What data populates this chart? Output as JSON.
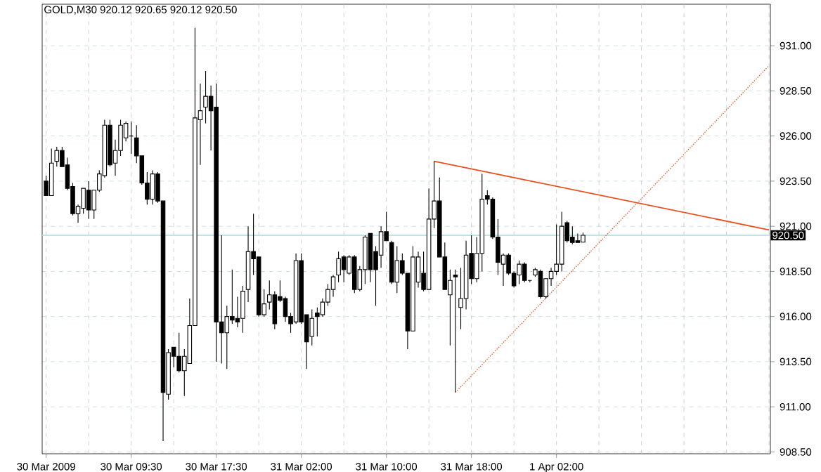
{
  "chart_data": {
    "type": "candlestick",
    "title": "GOLD,M30 920.12 920.65 920.12 920.50",
    "categories": [
      "30 Mar 2009",
      null,
      null,
      null,
      null,
      null,
      null,
      null,
      null,
      null,
      null,
      null,
      null,
      null,
      null,
      null,
      "30 Mar 09:30",
      null,
      null,
      null,
      null,
      null,
      null,
      null,
      null,
      null,
      null,
      null,
      null,
      null,
      null,
      null,
      "30 Mar 17:30",
      null,
      null,
      null,
      null,
      null,
      null,
      null,
      null,
      null,
      null,
      null,
      null,
      null,
      null,
      null,
      "31 Mar 02:00",
      null,
      null,
      null,
      null,
      null,
      null,
      null,
      null,
      null,
      null,
      null,
      null,
      null,
      null,
      null,
      "31 Mar 10:00",
      null,
      null,
      null,
      null,
      null,
      null,
      null,
      null,
      null,
      null,
      null,
      null,
      null,
      null,
      null,
      "31 Mar 18:00",
      null,
      null,
      null,
      null,
      null,
      null,
      null,
      null,
      null,
      null,
      null,
      null,
      null,
      null,
      null,
      "1 Apr 02:00",
      null,
      null,
      null,
      null,
      null,
      null,
      null,
      null,
      null,
      null,
      null,
      null,
      null,
      null,
      null,
      null,
      null,
      null,
      null,
      null,
      null,
      null,
      null,
      null,
      null,
      null,
      null,
      null,
      null,
      null,
      null,
      null,
      null,
      null,
      null,
      null,
      null,
      null,
      null,
      null
    ],
    "ohlc": [
      [
        923.5,
        923.8,
        922.7,
        922.7
      ],
      [
        922.7,
        925.3,
        922.7,
        924.5
      ],
      [
        924.6,
        925.4,
        924.3,
        925.2
      ],
      [
        925.2,
        925.4,
        924.3,
        924.3
      ],
      [
        924.4,
        924.8,
        923.0,
        923.1
      ],
      [
        923.2,
        923.4,
        921.6,
        921.7
      ],
      [
        921.7,
        922.2,
        921.2,
        922.1
      ],
      [
        922.0,
        923.1,
        921.7,
        923.1
      ],
      [
        923.0,
        923.5,
        921.4,
        921.9
      ],
      [
        921.9,
        923.0,
        921.4,
        923.0
      ],
      [
        923.0,
        924.1,
        922.9,
        923.9
      ],
      [
        923.8,
        926.9,
        923.7,
        926.6
      ],
      [
        926.6,
        926.9,
        924.3,
        924.4
      ],
      [
        924.5,
        925.8,
        923.8,
        925.2
      ],
      [
        925.2,
        926.9,
        924.9,
        926.6
      ],
      [
        925.9,
        926.8,
        925.7,
        926.7
      ],
      [
        926.0,
        926.8,
        925.0,
        926.0
      ],
      [
        925.9,
        926.6,
        924.5,
        924.9
      ],
      [
        924.9,
        924.9,
        923.3,
        923.4
      ],
      [
        923.4,
        924.0,
        922.2,
        922.5
      ],
      [
        922.5,
        924.1,
        922.2,
        923.9
      ],
      [
        923.9,
        924.0,
        922.3,
        922.4
      ],
      [
        922.4,
        922.4,
        909.1,
        911.8
      ],
      [
        911.7,
        914.2,
        911.4,
        914.0
      ],
      [
        914.3,
        914.3,
        913.2,
        913.8
      ],
      [
        913.8,
        915.1,
        912.9,
        913.0
      ],
      [
        913.0,
        914.2,
        911.6,
        913.8
      ],
      [
        913.4,
        917.0,
        913.4,
        915.5
      ],
      [
        915.5,
        932.0,
        915.5,
        927.0
      ],
      [
        926.9,
        928.9,
        924.4,
        927.4
      ],
      [
        927.6,
        929.6,
        926.7,
        928.2
      ],
      [
        928.2,
        928.8,
        925.2,
        927.4
      ],
      [
        927.6,
        928.9,
        913.5,
        915.7
      ],
      [
        915.7,
        920.5,
        913.4,
        915.1
      ],
      [
        915.1,
        916.6,
        913.1,
        916.0
      ],
      [
        916.0,
        918.6,
        915.6,
        915.8
      ],
      [
        915.9,
        917.1,
        915.4,
        915.7
      ],
      [
        915.9,
        917.7,
        915.1,
        917.4
      ],
      [
        917.5,
        921.0,
        916.8,
        919.6
      ],
      [
        919.6,
        921.7,
        918.3,
        919.2
      ],
      [
        919.3,
        919.3,
        916.0,
        916.1
      ],
      [
        916.1,
        917.5,
        916.0,
        916.7
      ],
      [
        916.8,
        918.0,
        916.4,
        917.2
      ],
      [
        917.2,
        917.4,
        915.3,
        915.6
      ],
      [
        917.1,
        918.0,
        916.8,
        916.9
      ],
      [
        917.0,
        917.1,
        915.7,
        916.0
      ],
      [
        916.0,
        916.2,
        915.1,
        915.6
      ],
      [
        915.7,
        919.5,
        915.6,
        919.1
      ],
      [
        919.1,
        919.5,
        915.6,
        915.7
      ],
      [
        916.1,
        916.1,
        913.1,
        914.6
      ],
      [
        914.9,
        916.4,
        914.4,
        915.9
      ],
      [
        916.2,
        916.5,
        914.9,
        916.0
      ],
      [
        916.1,
        917.0,
        916.0,
        916.8
      ],
      [
        916.8,
        917.8,
        916.6,
        917.5
      ],
      [
        917.5,
        918.3,
        917.1,
        918.2
      ],
      [
        918.3,
        919.6,
        917.9,
        919.2
      ],
      [
        919.3,
        919.4,
        917.9,
        918.6
      ],
      [
        918.4,
        919.4,
        918.3,
        919.3
      ],
      [
        919.3,
        919.4,
        917.3,
        917.5
      ],
      [
        917.5,
        918.8,
        917.4,
        918.6
      ],
      [
        918.6,
        920.5,
        917.8,
        920.4
      ],
      [
        920.6,
        920.6,
        917.9,
        918.6
      ],
      [
        919.6,
        919.9,
        916.6,
        918.6
      ],
      [
        919.4,
        921.0,
        918.7,
        920.7
      ],
      [
        920.7,
        921.8,
        920.2,
        920.2
      ],
      [
        920.1,
        920.2,
        917.8,
        917.9
      ],
      [
        917.9,
        919.9,
        917.3,
        919.1
      ],
      [
        919.1,
        919.5,
        918.3,
        918.4
      ],
      [
        918.4,
        918.4,
        914.2,
        915.2
      ],
      [
        915.2,
        919.9,
        915.2,
        919.3
      ],
      [
        917.9,
        919.6,
        917.6,
        919.3
      ],
      [
        918.4,
        919.6,
        917.4,
        917.5
      ],
      [
        917.5,
        923.1,
        917.5,
        921.4
      ],
      [
        921.4,
        924.6,
        920.9,
        922.4
      ],
      [
        922.4,
        923.7,
        919.3,
        919.3
      ],
      [
        919.3,
        920.1,
        917.5,
        917.5
      ],
      [
        917.2,
        918.6,
        914.4,
        918.0
      ],
      [
        918.3,
        918.6,
        911.8,
        918.2
      ],
      [
        916.5,
        918.7,
        915.3,
        917.0
      ],
      [
        917.0,
        920.2,
        916.4,
        919.4
      ],
      [
        919.5,
        920.5,
        917.8,
        918.1
      ],
      [
        918.1,
        920.4,
        917.9,
        919.5
      ],
      [
        919.5,
        923.9,
        918.5,
        922.5
      ],
      [
        922.7,
        923.0,
        922.2,
        922.5
      ],
      [
        922.5,
        922.6,
        920.3,
        920.4
      ],
      [
        920.4,
        921.4,
        918.3,
        919.0
      ],
      [
        918.9,
        919.5,
        917.7,
        919.4
      ],
      [
        919.4,
        919.5,
        918.3,
        918.4
      ],
      [
        918.4,
        918.5,
        917.6,
        917.7
      ],
      [
        918.3,
        919.1,
        917.8,
        918.9
      ],
      [
        918.9,
        919.0,
        917.9,
        918.0
      ],
      [
        918.0,
        918.0,
        917.9,
        918.0
      ],
      [
        918.3,
        918.7,
        918.2,
        918.6
      ],
      [
        918.5,
        918.6,
        917.0,
        917.1
      ],
      [
        917.1,
        918.1,
        917.0,
        918.1
      ],
      [
        918.1,
        918.7,
        917.7,
        918.5
      ],
      [
        918.5,
        921.1,
        918.3,
        918.9
      ],
      [
        918.9,
        921.8,
        918.5,
        921.0
      ],
      [
        921.2,
        921.3,
        920.1,
        920.2
      ],
      [
        920.4,
        921.0,
        920.0,
        920.1
      ],
      [
        920.2,
        920.6,
        920.1,
        920.1
      ],
      [
        920.12,
        920.65,
        920.12,
        920.5
      ],
      null,
      null,
      null,
      null,
      null,
      null,
      null,
      null,
      null,
      null,
      null,
      null,
      null,
      null,
      null,
      null,
      null,
      null,
      null,
      null,
      null,
      null,
      null,
      null,
      null,
      null,
      null,
      null,
      null,
      null,
      null,
      null,
      null,
      null,
      null
    ],
    "color": "#000000",
    "series": [
      {
        "type": "line",
        "values": [
          null,
          null,
          null,
          null,
          null,
          null,
          null,
          null,
          null,
          null,
          null,
          null,
          null,
          null,
          null,
          null,
          null,
          null,
          null,
          null,
          null,
          null,
          null,
          null,
          null,
          null,
          null,
          null,
          null,
          null,
          null,
          null,
          null,
          null,
          null,
          null,
          null,
          null,
          null,
          null,
          null,
          null,
          null,
          null,
          null,
          null,
          null,
          null,
          null,
          null,
          null,
          null,
          null,
          null,
          null,
          null,
          null,
          null,
          null,
          null,
          null,
          null,
          null,
          null,
          null,
          null,
          null,
          null,
          null,
          null,
          null,
          null,
          null,
          924.6,
          null,
          null,
          null,
          null,
          null,
          null,
          null,
          null,
          null,
          null,
          null,
          null,
          null,
          null,
          null,
          null,
          null,
          null,
          null,
          null,
          null,
          null,
          null,
          null,
          null,
          null,
          null,
          null,
          null,
          null,
          null,
          null,
          null,
          null,
          null,
          null,
          null,
          null,
          null,
          null,
          null,
          null,
          null,
          null,
          null,
          null,
          null,
          null,
          null,
          null,
          null,
          null,
          null,
          null,
          null,
          null,
          null,
          null,
          null,
          null,
          null,
          null,
          920.8
        ],
        "color": "#e8501e",
        "line_style": "solid"
      },
      {
        "type": "line",
        "values": [
          null,
          null,
          null,
          null,
          null,
          null,
          null,
          null,
          null,
          null,
          null,
          null,
          null,
          null,
          null,
          null,
          null,
          null,
          null,
          null,
          null,
          null,
          null,
          null,
          null,
          null,
          null,
          null,
          null,
          null,
          null,
          null,
          null,
          null,
          null,
          null,
          null,
          null,
          null,
          null,
          null,
          null,
          null,
          null,
          null,
          null,
          null,
          null,
          null,
          null,
          null,
          null,
          null,
          null,
          null,
          null,
          null,
          null,
          null,
          null,
          null,
          null,
          null,
          null,
          null,
          null,
          null,
          null,
          null,
          null,
          null,
          null,
          null,
          null,
          null,
          null,
          null,
          911.8,
          null,
          null,
          null,
          null,
          null,
          null,
          null,
          null,
          null,
          null,
          null,
          null,
          null,
          null,
          null,
          null,
          null,
          null,
          null,
          null,
          null,
          null,
          null,
          null,
          null,
          null,
          null,
          null,
          null,
          null,
          null,
          null,
          null,
          null,
          null,
          null,
          null,
          null,
          null,
          null,
          null,
          null,
          null,
          null,
          null,
          null,
          null,
          null,
          null,
          null,
          null,
          null,
          null,
          null,
          null,
          null,
          null,
          null,
          929.9
        ],
        "color": "#e05a28",
        "line_style": "dotted"
      }
    ],
    "ylim": [
      908.4,
      933.3
    ],
    "yticks": [
      {
        "value": 908.5,
        "label": "908.50"
      },
      {
        "value": 911,
        "label": "911.00"
      },
      {
        "value": 913.5,
        "label": "913.50"
      },
      {
        "value": 916,
        "label": "916.00"
      },
      {
        "value": 918.5,
        "label": "918.50"
      },
      {
        "value": 921,
        "label": "921.00"
      },
      {
        "value": 923.5,
        "label": "923.50"
      },
      {
        "value": 926,
        "label": "926.00"
      },
      {
        "value": 928.5,
        "label": "928.50"
      },
      {
        "value": 931,
        "label": "931.00"
      }
    ],
    "grid": true,
    "ref_lines": [
      {
        "axis": "y",
        "value": 920.5,
        "label": "920.50",
        "color": "#a8dcdc"
      }
    ]
  }
}
